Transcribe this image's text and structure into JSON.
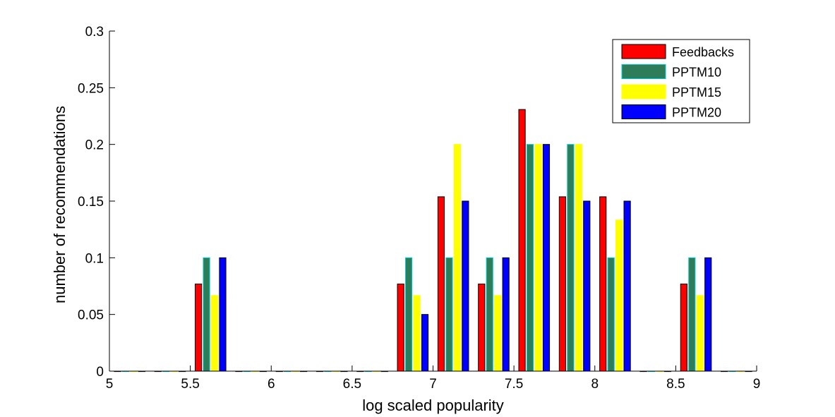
{
  "chart_data": {
    "type": "bar",
    "title": "",
    "xlabel": "log scaled popularity",
    "ylabel": "number of recommendations",
    "xlim": [
      5,
      9
    ],
    "ylim": [
      0,
      0.3
    ],
    "x_ticks": [
      5,
      5.5,
      6,
      6.5,
      7,
      7.5,
      8,
      8.5,
      9
    ],
    "x_tick_labels": [
      "5",
      "5.5",
      "6",
      "6.5",
      "7",
      "7.5",
      "8",
      "8.5",
      "9"
    ],
    "y_ticks": [
      0,
      0.05,
      0.1,
      0.15,
      0.2,
      0.25,
      0.3
    ],
    "y_tick_labels": [
      "0",
      "0.05",
      "0.1",
      "0.15",
      "0.2",
      "0.25",
      "0.3"
    ],
    "grid": false,
    "legend_position": "top-right",
    "x": [
      5.125,
      5.375,
      5.625,
      5.875,
      6.125,
      6.375,
      6.625,
      6.875,
      7.125,
      7.375,
      7.625,
      7.875,
      8.125,
      8.375,
      8.625,
      8.875
    ],
    "series": [
      {
        "name": "Feedbacks",
        "color": "#ff0000",
        "values": [
          0,
          0,
          0.0769,
          0,
          0,
          0,
          0,
          0.0769,
          0.1538,
          0.0769,
          0.2308,
          0.1538,
          0.1538,
          0,
          0.0769,
          0
        ]
      },
      {
        "name": "PPTM10",
        "color": "#2e7d5a",
        "values": [
          0,
          0,
          0.1,
          0,
          0,
          0,
          0,
          0.1,
          0.1,
          0.1,
          0.2,
          0.2,
          0.1,
          0,
          0.1,
          0
        ]
      },
      {
        "name": "PPTM15",
        "color": "#ffff00",
        "values": [
          0,
          0,
          0.0667,
          0,
          0,
          0,
          0,
          0.0667,
          0.2,
          0.0667,
          0.2,
          0.2,
          0.1333,
          0,
          0.0667,
          0
        ]
      },
      {
        "name": "PPTM20",
        "color": "#0000ff",
        "values": [
          0,
          0,
          0.1,
          0,
          0,
          0,
          0,
          0.05,
          0.15,
          0.1,
          0.2,
          0.15,
          0.15,
          0,
          0.1,
          0
        ]
      }
    ]
  }
}
